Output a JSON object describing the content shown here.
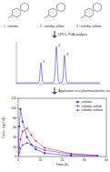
{
  "compounds": [
    "1 - sulindac",
    "2 - sulindac sulfide",
    "3 - sulindac sulfone"
  ],
  "steps": [
    "UPLC-PDA analysis",
    "Application to a pharmacokinetic study"
  ],
  "chromatogram": {
    "peaks": [
      "1",
      "2",
      "3"
    ]
  },
  "chart_data": {
    "type": "line",
    "x_label": "Time (h)",
    "y_label": "Conc. (μg/mL)",
    "x": [
      0,
      0.5,
      1,
      2,
      4,
      6,
      8,
      12,
      24,
      36
    ],
    "series": [
      {
        "name": "sulindac",
        "color": "#2a3fc4",
        "marker": "square",
        "values": [
          0,
          62,
          98,
          72,
          40,
          24,
          15,
          7,
          2,
          1
        ]
      },
      {
        "name": "sulindac sulfide",
        "color": "#d8266e",
        "marker": "circle",
        "values": [
          0,
          18,
          35,
          52,
          58,
          44,
          32,
          18,
          6,
          2
        ]
      },
      {
        "name": "sulindac sulfone",
        "color": "#7a3db0",
        "marker": "triangle",
        "values": [
          0,
          8,
          16,
          24,
          28,
          25,
          20,
          13,
          5,
          2
        ]
      }
    ],
    "xlim": [
      0,
      40
    ],
    "xticks": [
      0,
      10,
      20,
      30,
      40
    ],
    "ylim": [
      0,
      120
    ],
    "yticks": [
      0,
      20,
      40,
      60,
      80,
      100,
      120
    ],
    "legend": "upper-right"
  }
}
